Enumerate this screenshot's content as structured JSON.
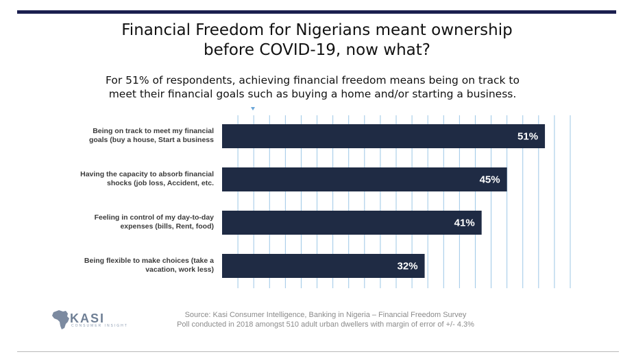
{
  "title": {
    "line1": "Financial Freedom for Nigerians meant ownership",
    "line2": "before COVID-19, now what?"
  },
  "subtitle": {
    "line1": "For 51% of respondents, achieving financial freedom means being on track to",
    "line2": "meet their financial goals such as buying a home and/or starting a business."
  },
  "chart_data": {
    "type": "bar",
    "orientation": "horizontal",
    "categories": [
      [
        "Being on track to meet my financial",
        "goals (buy a house, Start a business"
      ],
      [
        "Having the capacity to absorb financial",
        "shocks (job loss, Accident, etc."
      ],
      [
        "Feeling in control of my day-to-day",
        "expenses (bills, Rent, food)"
      ],
      [
        "Being flexible to make choices (take a",
        "vacation, work less)"
      ]
    ],
    "values": [
      51,
      45,
      41,
      32
    ],
    "value_labels": [
      "51%",
      "45%",
      "41%",
      "32%"
    ],
    "xlim": [
      0,
      55
    ],
    "grid": true,
    "bar_color": "#1f2b44",
    "grid_color": "#9cc7e6"
  },
  "source": {
    "line1": "Source: Kasi Consumer Intelligence, Banking in Nigeria – Financial Freedom Survey",
    "line2": "Poll conducted in 2018 amongst 510 adult urban dwellers with margin of error of +/- 4.3%"
  },
  "logo": {
    "name": "KASI",
    "tagline": "CONSUMER INSIGHT"
  },
  "colors": {
    "accent_rule": "#1b1f4f",
    "bar": "#1f2b44"
  }
}
